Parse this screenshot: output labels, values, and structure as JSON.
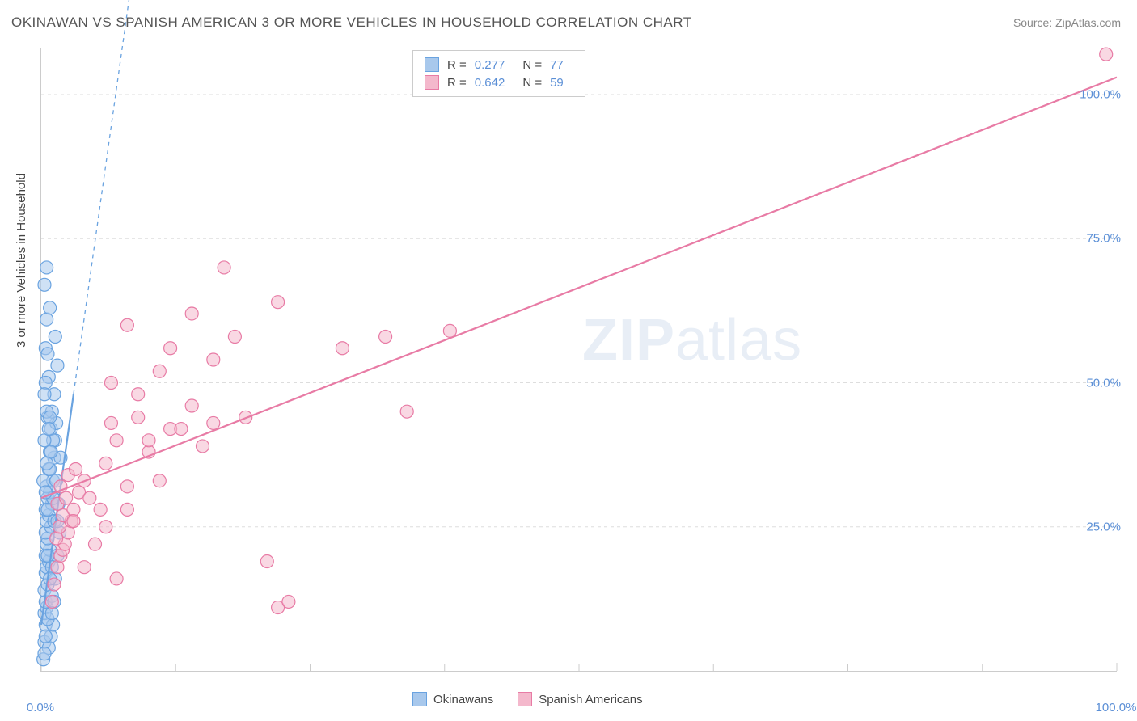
{
  "title": "OKINAWAN VS SPANISH AMERICAN 3 OR MORE VEHICLES IN HOUSEHOLD CORRELATION CHART",
  "source": "Source: ZipAtlas.com",
  "watermark": {
    "prefix": "ZIP",
    "suffix": "atlas"
  },
  "y_axis_label": "3 or more Vehicles in Household",
  "chart": {
    "type": "scatter",
    "xlim": [
      0,
      100
    ],
    "ylim": [
      0,
      108
    ],
    "x_ticks": [
      0,
      100
    ],
    "x_tick_labels": [
      "0.0%",
      "100.0%"
    ],
    "y_ticks": [
      25,
      50,
      75,
      100
    ],
    "y_tick_labels": [
      "25.0%",
      "50.0%",
      "75.0%",
      "100.0%"
    ],
    "minor_x_gridlines": [
      12.5,
      25,
      37.5,
      50,
      62.5,
      75,
      87.5
    ],
    "background_color": "#ffffff",
    "grid_color": "#dddddd",
    "axis_color": "#cccccc",
    "marker_radius": 8,
    "marker_stroke_width": 1.2,
    "trend_line_width": 2.2,
    "trend_dash_width": 1.3
  },
  "series": [
    {
      "name": "Okinawans",
      "color_fill": "#a8c8ec",
      "color_stroke": "#6aa3e0",
      "fill_opacity": 0.55,
      "R": "0.277",
      "N": "77",
      "trend_line": {
        "x1": 0,
        "y1": 8,
        "x2": 3,
        "y2": 48,
        "dash_x2": 25,
        "dash_y2": 340
      },
      "points": [
        [
          0.2,
          2
        ],
        [
          0.3,
          5
        ],
        [
          0.4,
          8
        ],
        [
          0.3,
          10
        ],
        [
          0.5,
          11
        ],
        [
          0.4,
          12
        ],
        [
          0.3,
          14
        ],
        [
          0.6,
          15
        ],
        [
          0.4,
          17
        ],
        [
          0.5,
          18
        ],
        [
          0.7,
          19
        ],
        [
          0.4,
          20
        ],
        [
          0.8,
          21
        ],
        [
          0.5,
          22
        ],
        [
          0.6,
          23
        ],
        [
          0.4,
          24
        ],
        [
          0.9,
          25
        ],
        [
          0.5,
          26
        ],
        [
          0.7,
          27
        ],
        [
          0.4,
          28
        ],
        [
          1.0,
          29
        ],
        [
          0.6,
          30
        ],
        [
          0.8,
          31
        ],
        [
          0.5,
          32
        ],
        [
          1.1,
          33
        ],
        [
          0.7,
          35
        ],
        [
          1.2,
          37
        ],
        [
          0.8,
          38
        ],
        [
          1.3,
          40
        ],
        [
          0.9,
          42
        ],
        [
          1.4,
          43
        ],
        [
          0.6,
          44
        ],
        [
          1.0,
          45
        ],
        [
          1.2,
          48
        ],
        [
          0.7,
          51
        ],
        [
          1.5,
          53
        ],
        [
          0.4,
          56
        ],
        [
          1.3,
          58
        ],
        [
          0.5,
          61
        ],
        [
          0.8,
          63
        ],
        [
          0.3,
          67
        ],
        [
          0.5,
          70
        ],
        [
          0.7,
          4
        ],
        [
          0.9,
          6
        ],
        [
          1.1,
          8
        ],
        [
          0.6,
          9
        ],
        [
          1.0,
          13
        ],
        [
          1.3,
          16
        ],
        [
          1.5,
          20
        ],
        [
          1.7,
          24
        ],
        [
          1.2,
          26
        ],
        [
          1.6,
          29
        ],
        [
          1.4,
          33
        ],
        [
          1.8,
          37
        ],
        [
          1.1,
          40
        ],
        [
          1.5,
          26
        ],
        [
          0.2,
          33
        ],
        [
          0.3,
          40
        ],
        [
          0.5,
          45
        ],
        [
          0.4,
          50
        ],
        [
          0.6,
          28
        ],
        [
          0.8,
          35
        ],
        [
          1.0,
          18
        ],
        [
          1.2,
          12
        ],
        [
          0.4,
          6
        ],
        [
          0.6,
          55
        ],
        [
          0.3,
          48
        ],
        [
          0.8,
          44
        ],
        [
          1.1,
          30
        ],
        [
          0.9,
          38
        ],
        [
          0.7,
          42
        ],
        [
          0.5,
          36
        ],
        [
          0.4,
          31
        ],
        [
          0.6,
          20
        ],
        [
          0.8,
          16
        ],
        [
          1.0,
          10
        ],
        [
          0.3,
          3
        ]
      ]
    },
    {
      "name": "Spanish Americans",
      "color_fill": "#f4b8cc",
      "color_stroke": "#e87ba5",
      "fill_opacity": 0.55,
      "R": "0.642",
      "N": "59",
      "trend_line": {
        "x1": 0,
        "y1": 30,
        "x2": 100,
        "y2": 103
      },
      "points": [
        [
          1.0,
          12
        ],
        [
          1.2,
          15
        ],
        [
          1.5,
          18
        ],
        [
          1.8,
          20
        ],
        [
          2.0,
          21
        ],
        [
          2.2,
          22
        ],
        [
          1.4,
          23
        ],
        [
          2.5,
          24
        ],
        [
          1.7,
          25
        ],
        [
          2.8,
          26
        ],
        [
          2.0,
          27
        ],
        [
          3.0,
          28
        ],
        [
          1.5,
          29
        ],
        [
          2.3,
          30
        ],
        [
          3.5,
          31
        ],
        [
          1.8,
          32
        ],
        [
          4.0,
          33
        ],
        [
          2.5,
          34
        ],
        [
          3.2,
          35
        ],
        [
          5.5,
          28
        ],
        [
          4.5,
          30
        ],
        [
          8.0,
          32
        ],
        [
          6.0,
          36
        ],
        [
          10.0,
          38
        ],
        [
          7.0,
          40
        ],
        [
          12.0,
          42
        ],
        [
          9.0,
          44
        ],
        [
          14.0,
          46
        ],
        [
          6.5,
          50
        ],
        [
          11.0,
          52
        ],
        [
          16.0,
          54
        ],
        [
          12.0,
          56
        ],
        [
          18.0,
          58
        ],
        [
          8.0,
          60
        ],
        [
          14.0,
          62
        ],
        [
          22.0,
          64
        ],
        [
          28.0,
          56
        ],
        [
          32.0,
          58
        ],
        [
          10.0,
          40
        ],
        [
          13.0,
          42
        ],
        [
          16.0,
          43
        ],
        [
          19.0,
          44
        ],
        [
          34.0,
          45
        ],
        [
          17.0,
          70
        ],
        [
          38.0,
          59
        ],
        [
          5.0,
          22
        ],
        [
          7.0,
          16
        ],
        [
          21.0,
          19
        ],
        [
          22.0,
          11
        ],
        [
          23.0,
          12
        ],
        [
          4.0,
          18
        ],
        [
          6.0,
          25
        ],
        [
          8.0,
          28
        ],
        [
          11.0,
          33
        ],
        [
          15.0,
          39
        ],
        [
          6.5,
          43
        ],
        [
          9.0,
          48
        ],
        [
          99.0,
          107
        ],
        [
          3.0,
          26
        ]
      ]
    }
  ],
  "legend_bottom": [
    {
      "label": "Okinawans",
      "swatch_fill": "#a8c8ec",
      "swatch_stroke": "#6aa3e0"
    },
    {
      "label": "Spanish Americans",
      "swatch_fill": "#f4b8cc",
      "swatch_stroke": "#e87ba5"
    }
  ],
  "stats_legend": {
    "R_label": "R =",
    "N_label": "N ="
  },
  "text_colors": {
    "title": "#555555",
    "source": "#888888",
    "tick": "#5b8fd6",
    "axis_label": "#444444",
    "watermark": "#e8eef6"
  }
}
